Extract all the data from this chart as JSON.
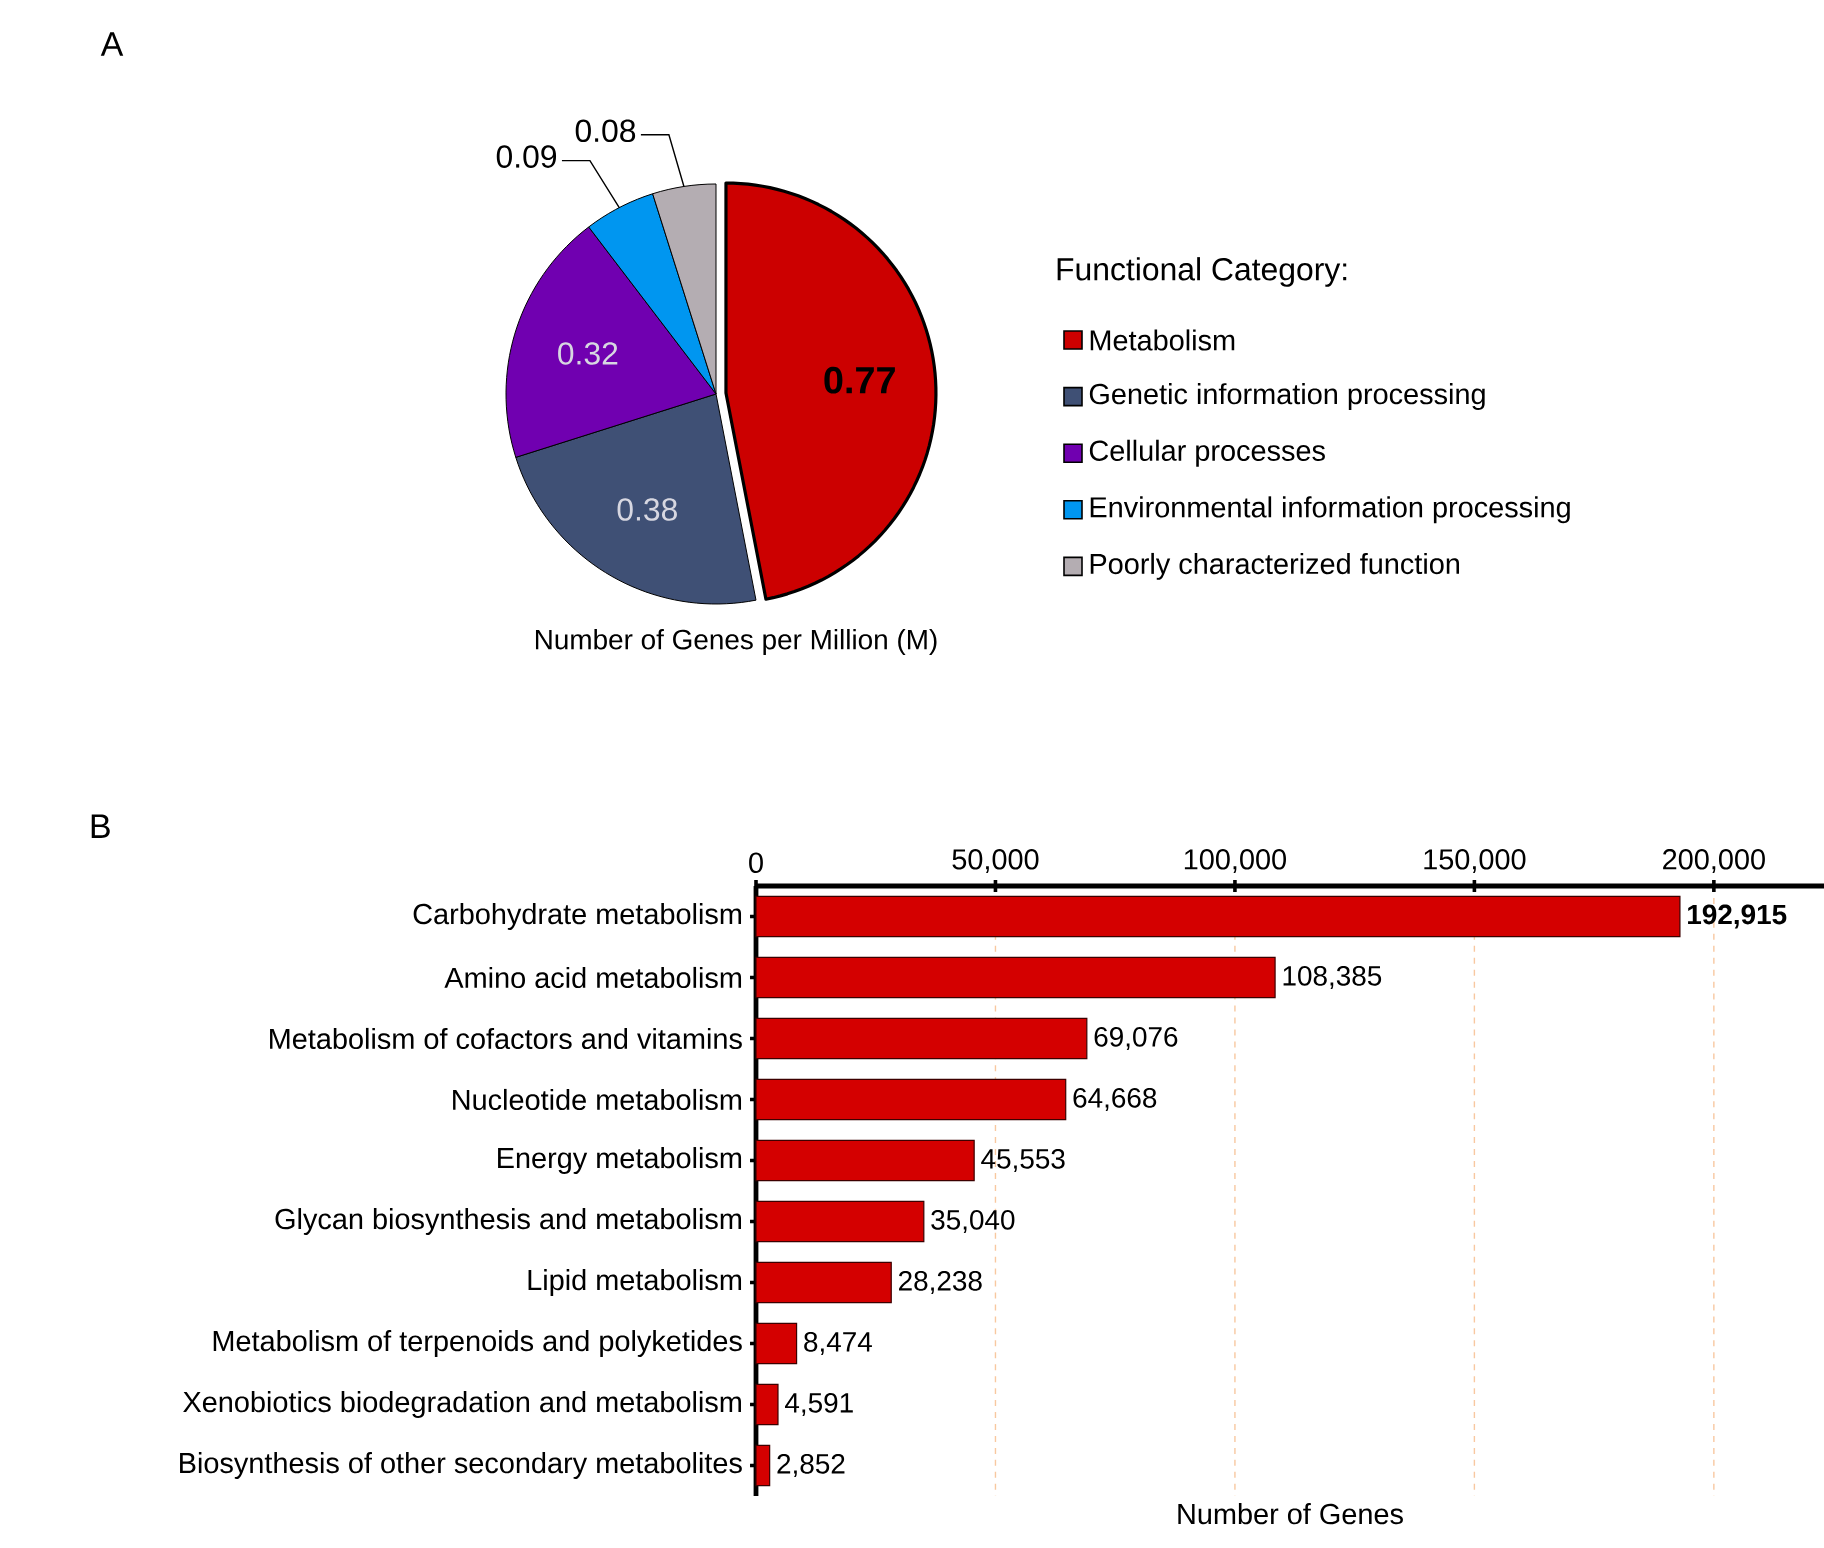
{
  "chart_data": [
    {
      "type": "pie",
      "title": "A",
      "legend_title": "Functional Category:",
      "legend": "right",
      "categories": [
        "Metabolism",
        "Genetic information processing",
        "Cellular processes",
        "Environmental information processing",
        "Poorly characterized function"
      ],
      "values": [
        0.77,
        0.38,
        0.32,
        0.09,
        0.08
      ],
      "colors": [
        "#cc0000",
        "#3f5075",
        "#7000b0",
        "#0096f0",
        "#b4adb2"
      ],
      "value_labels": [
        "**0.77**",
        "0.38",
        "0.32",
        "0.09",
        "0.08"
      ],
      "annotations": [
        "Number of Genes per Million (M)"
      ]
    },
    {
      "type": "bar",
      "orientation": "horizontal",
      "title": "B",
      "xlabel": "Number of Genes",
      "grid": "x",
      "color": "#d40000",
      "categories": [
        "Carbohydrate metabolism",
        "Amino acid metabolism",
        "Metabolism of cofactors and vitamins",
        "Nucleotide metabolism",
        "Energy metabolism",
        "Glycan biosynthesis and metabolism",
        "Lipid metabolism",
        "Metabolism of terpenoids and polyketides",
        "Xenobiotics biodegradation and metabolism",
        "Biosynthesis of other secondary metabolites"
      ],
      "values": [
        192915,
        108385,
        69076,
        64668,
        45553,
        35040,
        28238,
        8474,
        4591,
        2852
      ],
      "value_labels": [
        "**192,915**",
        "108,385",
        "69,076",
        "64,668",
        "45,553",
        "35,040",
        "28,238",
        "8,474",
        "4,591",
        "2,852"
      ],
      "xlim": [
        0,
        223000
      ],
      "xticks": [
        0,
        {
          "value": 50000,
          "label": "50,000"
        },
        {
          "value": 100000,
          "label": "100,000"
        },
        {
          "value": 150000,
          "label": "150,000"
        },
        {
          "value": 200000,
          "label": "200,000"
        }
      ]
    }
  ]
}
